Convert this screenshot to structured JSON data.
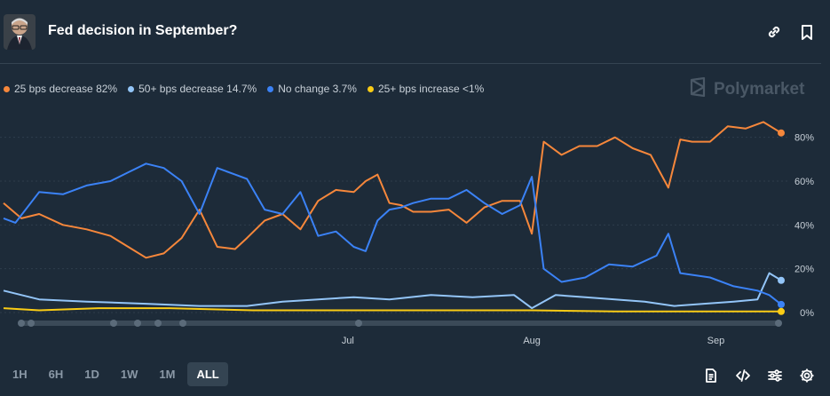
{
  "header": {
    "title": "Fed decision in September?",
    "avatar_icon": "powell-portrait",
    "link_icon": "link-icon",
    "bookmark_icon": "bookmark-icon"
  },
  "legend": [
    {
      "label": "25 bps decrease 82%",
      "color": "#f6873b"
    },
    {
      "label": "50+ bps decrease 14.7%",
      "color": "#93c5f8"
    },
    {
      "label": "No change 3.7%",
      "color": "#3b82f6"
    },
    {
      "label": "25+ bps increase <1%",
      "color": "#facc15"
    }
  ],
  "brand": {
    "name": "Polymarket",
    "icon": "polymarket-logo-icon"
  },
  "chart_data": {
    "type": "line",
    "ylim": [
      0,
      90
    ],
    "grid": true,
    "y_ticks": [
      {
        "value": 0,
        "label": "0%"
      },
      {
        "value": 20,
        "label": "20%"
      },
      {
        "value": 40,
        "label": "40%"
      },
      {
        "value": 60,
        "label": "60%"
      },
      {
        "value": 80,
        "label": "80%"
      }
    ],
    "x_ticks": [
      {
        "date": "2024-07-01",
        "label": "Jul"
      },
      {
        "date": "2024-08-01",
        "label": "Aug"
      },
      {
        "date": "2024-09-01",
        "label": "Sep"
      }
    ],
    "x_range": [
      "2024-05-04",
      "2024-09-12"
    ],
    "series": [
      {
        "name": "25 bps decrease",
        "color": "#f6873b",
        "x": [
          "2024-05-04",
          "2024-05-07",
          "2024-05-10",
          "2024-05-14",
          "2024-05-18",
          "2024-05-22",
          "2024-05-25",
          "2024-05-28",
          "2024-05-31",
          "2024-06-03",
          "2024-06-06",
          "2024-06-09",
          "2024-06-12",
          "2024-06-14",
          "2024-06-17",
          "2024-06-20",
          "2024-06-23",
          "2024-06-26",
          "2024-06-29",
          "2024-07-02",
          "2024-07-04",
          "2024-07-06",
          "2024-07-08",
          "2024-07-10",
          "2024-07-12",
          "2024-07-15",
          "2024-07-18",
          "2024-07-21",
          "2024-07-24",
          "2024-07-27",
          "2024-07-30",
          "2024-08-01",
          "2024-08-03",
          "2024-08-06",
          "2024-08-09",
          "2024-08-12",
          "2024-08-15",
          "2024-08-18",
          "2024-08-21",
          "2024-08-24",
          "2024-08-26",
          "2024-08-28",
          "2024-08-31",
          "2024-09-03",
          "2024-09-06",
          "2024-09-09",
          "2024-09-12"
        ],
        "values": [
          50,
          43,
          45,
          40,
          38,
          35,
          30,
          25,
          27,
          34,
          47,
          30,
          29,
          34,
          42,
          45,
          38,
          51,
          56,
          55,
          60,
          63,
          50,
          49,
          46,
          46,
          47,
          41,
          48,
          51,
          51,
          36,
          78,
          72,
          76,
          76,
          80,
          75,
          72,
          57,
          79,
          78,
          78,
          85,
          84,
          87,
          82
        ]
      },
      {
        "name": "50+ bps decrease",
        "color": "#93c5f8",
        "x": [
          "2024-05-04",
          "2024-05-10",
          "2024-05-18",
          "2024-05-28",
          "2024-06-06",
          "2024-06-14",
          "2024-06-20",
          "2024-06-26",
          "2024-07-02",
          "2024-07-08",
          "2024-07-15",
          "2024-07-22",
          "2024-07-29",
          "2024-08-01",
          "2024-08-05",
          "2024-08-10",
          "2024-08-15",
          "2024-08-20",
          "2024-08-25",
          "2024-08-30",
          "2024-09-04",
          "2024-09-08",
          "2024-09-10",
          "2024-09-12"
        ],
        "values": [
          10,
          6,
          5,
          4,
          3,
          3,
          5,
          6,
          7,
          6,
          8,
          7,
          8,
          2,
          8,
          7,
          6,
          5,
          3,
          4,
          5,
          6,
          18,
          14.7
        ]
      },
      {
        "name": "No change",
        "color": "#3b82f6",
        "x": [
          "2024-05-04",
          "2024-05-06",
          "2024-05-10",
          "2024-05-14",
          "2024-05-18",
          "2024-05-22",
          "2024-05-25",
          "2024-05-28",
          "2024-05-31",
          "2024-06-03",
          "2024-06-06",
          "2024-06-09",
          "2024-06-12",
          "2024-06-14",
          "2024-06-17",
          "2024-06-20",
          "2024-06-23",
          "2024-06-26",
          "2024-06-29",
          "2024-07-02",
          "2024-07-04",
          "2024-07-06",
          "2024-07-08",
          "2024-07-10",
          "2024-07-12",
          "2024-07-15",
          "2024-07-18",
          "2024-07-21",
          "2024-07-24",
          "2024-07-27",
          "2024-07-30",
          "2024-08-01",
          "2024-08-03",
          "2024-08-06",
          "2024-08-10",
          "2024-08-14",
          "2024-08-18",
          "2024-08-22",
          "2024-08-24",
          "2024-08-26",
          "2024-08-31",
          "2024-09-04",
          "2024-09-08",
          "2024-09-10",
          "2024-09-12"
        ],
        "values": [
          43,
          41,
          55,
          54,
          58,
          60,
          64,
          68,
          66,
          60,
          45,
          66,
          63,
          61,
          47,
          45,
          55,
          35,
          37,
          30,
          28,
          42,
          47,
          48,
          50,
          52,
          52,
          56,
          50,
          45,
          49,
          62,
          20,
          14,
          16,
          22,
          21,
          26,
          36,
          18,
          16,
          12,
          10,
          8,
          3.7
        ]
      },
      {
        "name": "25+ bps increase",
        "color": "#facc15",
        "x": [
          "2024-05-04",
          "2024-05-10",
          "2024-05-20",
          "2024-06-01",
          "2024-06-15",
          "2024-07-01",
          "2024-07-15",
          "2024-08-01",
          "2024-08-15",
          "2024-09-01",
          "2024-09-12"
        ],
        "values": [
          2,
          1,
          2,
          2,
          1,
          1,
          1,
          1,
          0.5,
          0.5,
          0.5
        ]
      }
    ]
  },
  "timeframes": [
    {
      "label": "1H",
      "active": false
    },
    {
      "label": "6H",
      "active": false
    },
    {
      "label": "1D",
      "active": false
    },
    {
      "label": "1W",
      "active": false
    },
    {
      "label": "1M",
      "active": false
    },
    {
      "label": "ALL",
      "active": true
    }
  ],
  "footer_icons": [
    "document-icon",
    "code-icon",
    "sliders-icon",
    "gear-icon"
  ]
}
